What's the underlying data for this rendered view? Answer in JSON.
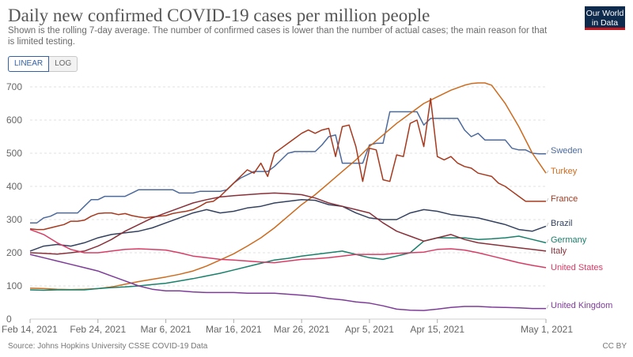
{
  "header": {
    "title": "Daily new confirmed COVID-19 cases per million people",
    "subtitle": "Shown is the rolling 7-day average. The number of confirmed cases is lower than the number of actual cases; the main reason for that is limited testing.",
    "logo_line1": "Our World",
    "logo_line2": "in Data"
  },
  "controls": {
    "linear_label": "LINEAR",
    "log_label": "LOG"
  },
  "footer": {
    "source": "Source: Johns Hopkins University CSSE COVID-19 Data",
    "license": "CC BY"
  },
  "chart_data": {
    "type": "line",
    "title": "Daily new confirmed COVID-19 cases per million people",
    "xlabel": "",
    "ylabel": "",
    "x_start": "2021-02-14",
    "x_end": "2021-05-01",
    "xlim": [
      0,
      76
    ],
    "ylim": [
      0,
      700
    ],
    "yticks": [
      0,
      100,
      200,
      300,
      400,
      500,
      600,
      700
    ],
    "grid": true,
    "legend": "right (inline labels)",
    "x_ticks": [
      {
        "label": "Feb 14, 2021",
        "day": 0
      },
      {
        "label": "Feb 24, 2021",
        "day": 10
      },
      {
        "label": "Mar 6, 2021",
        "day": 20
      },
      {
        "label": "Mar 16, 2021",
        "day": 30
      },
      {
        "label": "Mar 26, 2021",
        "day": 40
      },
      {
        "label": "Apr 5, 2021",
        "day": 50
      },
      {
        "label": "Apr 15, 2021",
        "day": 60
      },
      {
        "label": "May 1, 2021",
        "day": 76
      }
    ],
    "series": [
      {
        "name": "Sweden",
        "color": "#4c6a9c",
        "days": [
          0,
          1,
          2,
          3,
          4,
          5,
          6,
          7,
          8,
          9,
          10,
          11,
          12,
          13,
          14,
          15,
          16,
          17,
          18,
          19,
          20,
          21,
          22,
          23,
          24,
          25,
          26,
          27,
          28,
          29,
          30,
          31,
          32,
          33,
          34,
          35,
          36,
          37,
          38,
          39,
          40,
          41,
          42,
          43,
          44,
          45,
          46,
          47,
          48,
          49,
          50,
          51,
          52,
          53,
          54,
          55,
          56,
          57,
          58,
          59,
          60,
          61,
          62,
          63,
          64,
          65,
          66,
          67,
          68,
          69,
          70,
          71,
          72,
          73,
          74,
          75,
          76
        ],
        "values": [
          290,
          290,
          305,
          310,
          320,
          320,
          320,
          320,
          340,
          360,
          360,
          370,
          370,
          370,
          370,
          380,
          390,
          390,
          390,
          390,
          390,
          390,
          380,
          380,
          380,
          385,
          385,
          385,
          385,
          390,
          410,
          425,
          435,
          445,
          445,
          445,
          460,
          480,
          500,
          505,
          505,
          505,
          505,
          525,
          550,
          555,
          470,
          470,
          470,
          470,
          525,
          530,
          530,
          625,
          625,
          625,
          625,
          625,
          585,
          605,
          605,
          605,
          605,
          605,
          570,
          550,
          560,
          540,
          540,
          540,
          540,
          515,
          510,
          510,
          500,
          498,
          498
        ]
      },
      {
        "name": "Turkey",
        "color": "#cc6b1e",
        "days": [
          0,
          2,
          4,
          6,
          8,
          10,
          12,
          14,
          16,
          18,
          20,
          22,
          24,
          26,
          28,
          30,
          32,
          34,
          36,
          38,
          40,
          42,
          44,
          46,
          48,
          50,
          52,
          54,
          56,
          58,
          60,
          62,
          64,
          65,
          66,
          67,
          68,
          70,
          72,
          74,
          76
        ],
        "values": [
          93,
          92,
          90,
          89,
          90,
          92,
          97,
          105,
          113,
          120,
          127,
          135,
          145,
          160,
          178,
          197,
          220,
          245,
          275,
          310,
          345,
          375,
          410,
          445,
          480,
          520,
          555,
          590,
          620,
          650,
          670,
          690,
          705,
          710,
          712,
          712,
          705,
          650,
          580,
          500,
          440
        ]
      },
      {
        "name": "France",
        "color": "#a6391e",
        "days": [
          0,
          1,
          2,
          3,
          4,
          5,
          6,
          7,
          8,
          9,
          10,
          11,
          12,
          13,
          14,
          15,
          16,
          17,
          18,
          19,
          20,
          21,
          22,
          23,
          24,
          25,
          26,
          27,
          28,
          29,
          30,
          31,
          32,
          33,
          34,
          35,
          36,
          37,
          38,
          39,
          40,
          41,
          42,
          43,
          44,
          45,
          46,
          47,
          48,
          49,
          50,
          51,
          52,
          53,
          54,
          55,
          56,
          57,
          58,
          59,
          60,
          61,
          62,
          63,
          64,
          65,
          66,
          67,
          68,
          69,
          70,
          71,
          72,
          73,
          74,
          75,
          76
        ],
        "values": [
          272,
          270,
          270,
          275,
          280,
          285,
          295,
          295,
          298,
          310,
          318,
          320,
          320,
          315,
          318,
          312,
          308,
          305,
          308,
          310,
          312,
          318,
          322,
          325,
          330,
          340,
          352,
          355,
          370,
          390,
          410,
          430,
          450,
          440,
          470,
          430,
          500,
          515,
          530,
          545,
          560,
          570,
          560,
          570,
          575,
          490,
          580,
          585,
          520,
          415,
          515,
          510,
          420,
          415,
          495,
          490,
          590,
          600,
          520,
          665,
          490,
          480,
          490,
          470,
          460,
          455,
          440,
          435,
          430,
          410,
          400,
          385,
          370,
          355,
          355,
          355,
          355
        ]
      },
      {
        "name": "Brazil",
        "color": "#34425f",
        "days": [
          0,
          2,
          4,
          6,
          8,
          10,
          12,
          14,
          16,
          18,
          20,
          22,
          24,
          26,
          28,
          30,
          32,
          34,
          36,
          38,
          40,
          42,
          44,
          46,
          48,
          50,
          52,
          54,
          56,
          58,
          60,
          62,
          64,
          66,
          68,
          70,
          72,
          74,
          76
        ],
        "values": [
          205,
          220,
          225,
          220,
          230,
          245,
          255,
          260,
          265,
          275,
          290,
          305,
          320,
          330,
          320,
          325,
          335,
          340,
          350,
          355,
          360,
          358,
          345,
          340,
          320,
          305,
          300,
          300,
          320,
          330,
          325,
          315,
          310,
          305,
          295,
          285,
          270,
          265,
          280
        ]
      },
      {
        "name": "Germany",
        "color": "#18806b",
        "days": [
          0,
          2,
          4,
          6,
          8,
          10,
          12,
          14,
          16,
          18,
          20,
          22,
          24,
          26,
          28,
          30,
          32,
          34,
          36,
          38,
          40,
          42,
          44,
          46,
          48,
          50,
          52,
          54,
          56,
          58,
          60,
          62,
          64,
          66,
          68,
          70,
          72,
          74,
          76
        ],
        "values": [
          88,
          87,
          88,
          88,
          88,
          92,
          95,
          97,
          100,
          104,
          108,
          115,
          122,
          130,
          138,
          148,
          158,
          168,
          178,
          183,
          190,
          195,
          200,
          205,
          195,
          185,
          180,
          190,
          200,
          235,
          245,
          245,
          245,
          240,
          242,
          245,
          250,
          240,
          230
        ]
      },
      {
        "name": "Italy",
        "color": "#883039",
        "days": [
          0,
          2,
          4,
          6,
          8,
          10,
          12,
          14,
          16,
          18,
          20,
          22,
          24,
          26,
          28,
          30,
          32,
          34,
          36,
          38,
          40,
          42,
          44,
          46,
          48,
          50,
          52,
          54,
          56,
          58,
          60,
          62,
          64,
          66,
          68,
          70,
          72,
          74,
          76
        ],
        "values": [
          200,
          198,
          196,
          200,
          205,
          220,
          240,
          265,
          285,
          305,
          320,
          335,
          350,
          360,
          368,
          372,
          375,
          378,
          380,
          378,
          375,
          365,
          350,
          340,
          330,
          320,
          290,
          265,
          250,
          235,
          245,
          255,
          240,
          230,
          225,
          220,
          215,
          210,
          205
        ]
      },
      {
        "name": "United States",
        "color": "#d73c66",
        "days": [
          0,
          2,
          4,
          6,
          8,
          10,
          12,
          14,
          16,
          18,
          20,
          22,
          24,
          26,
          28,
          30,
          32,
          34,
          36,
          38,
          40,
          42,
          44,
          46,
          48,
          50,
          52,
          54,
          56,
          58,
          60,
          62,
          64,
          66,
          68,
          70,
          72,
          74,
          76
        ],
        "values": [
          270,
          255,
          230,
          210,
          200,
          200,
          205,
          210,
          212,
          210,
          208,
          200,
          190,
          185,
          180,
          178,
          175,
          172,
          170,
          175,
          180,
          182,
          185,
          190,
          195,
          195,
          195,
          198,
          200,
          202,
          210,
          212,
          208,
          200,
          190,
          180,
          170,
          162,
          155
        ]
      },
      {
        "name": "United Kingdom",
        "color": "#7d3c98",
        "days": [
          0,
          2,
          4,
          6,
          8,
          10,
          12,
          14,
          16,
          18,
          20,
          22,
          24,
          26,
          28,
          30,
          32,
          34,
          36,
          38,
          40,
          42,
          44,
          46,
          48,
          50,
          52,
          54,
          56,
          58,
          60,
          62,
          64,
          66,
          68,
          70,
          72,
          74,
          76
        ],
        "values": [
          195,
          185,
          175,
          165,
          155,
          145,
          130,
          115,
          100,
          90,
          85,
          85,
          82,
          80,
          80,
          80,
          78,
          78,
          78,
          75,
          72,
          68,
          62,
          58,
          52,
          48,
          40,
          30,
          27,
          26,
          30,
          35,
          38,
          38,
          36,
          35,
          34,
          32,
          32
        ]
      }
    ]
  }
}
